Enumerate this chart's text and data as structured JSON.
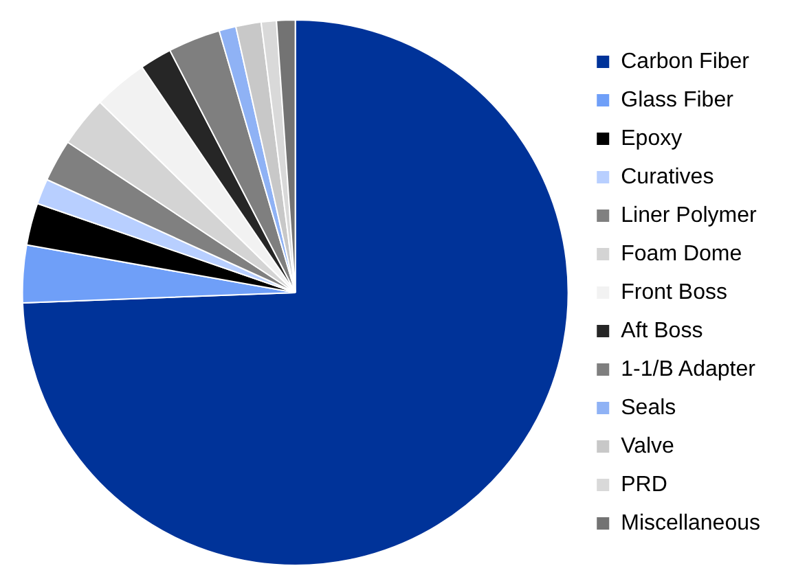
{
  "chart_data": {
    "type": "pie",
    "categories": [
      "Carbon Fiber",
      "Glass Fiber",
      "Epoxy",
      "Curatives",
      "Liner Polymer",
      "Foam Dome",
      "Front Boss",
      "Aft Boss",
      "1-1/B Adapter",
      "Seals",
      "Valve",
      "PRD",
      "Miscellaneous"
    ],
    "values": [
      74.4,
      3.4,
      2.5,
      1.5,
      2.5,
      3.0,
      3.2,
      1.9,
      3.1,
      1.0,
      1.5,
      0.9,
      1.1
    ],
    "colors": [
      "#003399",
      "#6f9ff8",
      "#000000",
      "#b8cfff",
      "#808080",
      "#d4d4d4",
      "#f2f2f2",
      "#262626",
      "#7f7f7f",
      "#8fb2f5",
      "#c8c8c8",
      "#d9d9d9",
      "#737373"
    ],
    "legend": "right"
  }
}
